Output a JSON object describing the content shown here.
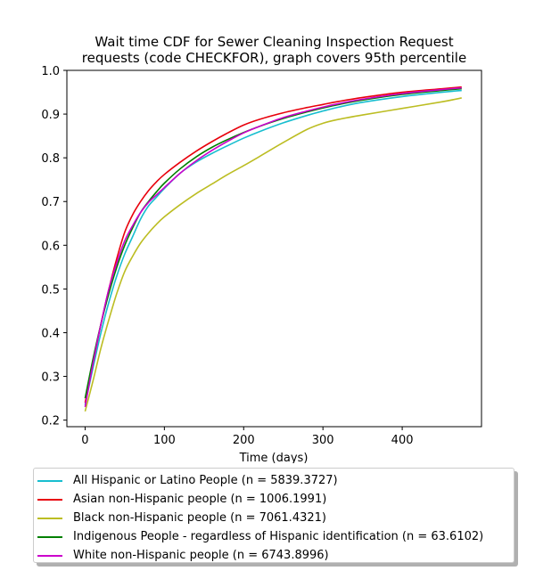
{
  "chart_data": {
    "type": "line",
    "title": "Wait time CDF for Sewer Cleaning Inspection Request\nrequests (code CHECKFOR), graph covers 95th percentile",
    "xlabel": "Time (days)",
    "ylabel": "",
    "xlim": [
      -23,
      500
    ],
    "ylim": [
      0.185,
      1.0
    ],
    "xticks": [
      0,
      100,
      200,
      300,
      400
    ],
    "yticks": [
      0.2,
      0.3,
      0.4,
      0.5,
      0.6,
      0.7,
      0.8,
      0.9,
      1.0
    ],
    "grid": false,
    "legend_position": "bottom-outside",
    "series": [
      {
        "name": "All Hispanic or Latino People (n = 5839.3727)",
        "color": "#17becf",
        "x": [
          0,
          10,
          20,
          30,
          40,
          50,
          60,
          70,
          80,
          90,
          100,
          120,
          140,
          160,
          180,
          200,
          220,
          250,
          280,
          300,
          320,
          350,
          400,
          450,
          475
        ],
        "y": [
          0.235,
          0.32,
          0.4,
          0.47,
          0.53,
          0.58,
          0.62,
          0.66,
          0.69,
          0.71,
          0.73,
          0.765,
          0.79,
          0.81,
          0.828,
          0.845,
          0.86,
          0.88,
          0.897,
          0.907,
          0.916,
          0.927,
          0.94,
          0.95,
          0.954
        ]
      },
      {
        "name": "Asian non-Hispanic people (n = 1006.1991)",
        "color": "#e8000b",
        "x": [
          0,
          10,
          20,
          30,
          40,
          50,
          60,
          70,
          80,
          90,
          100,
          120,
          140,
          160,
          180,
          200,
          220,
          250,
          280,
          300,
          320,
          350,
          400,
          450,
          475
        ],
        "y": [
          0.24,
          0.33,
          0.42,
          0.5,
          0.57,
          0.63,
          0.67,
          0.7,
          0.725,
          0.745,
          0.762,
          0.79,
          0.815,
          0.837,
          0.857,
          0.875,
          0.888,
          0.903,
          0.915,
          0.922,
          0.929,
          0.938,
          0.95,
          0.958,
          0.962
        ]
      },
      {
        "name": "Black non-Hispanic people (n = 7061.4321)",
        "color": "#bcbd22",
        "x": [
          0,
          10,
          20,
          30,
          40,
          50,
          60,
          70,
          80,
          90,
          100,
          120,
          140,
          160,
          180,
          200,
          220,
          250,
          280,
          300,
          320,
          350,
          400,
          450,
          475
        ],
        "y": [
          0.22,
          0.29,
          0.365,
          0.43,
          0.49,
          0.54,
          0.575,
          0.605,
          0.628,
          0.648,
          0.665,
          0.693,
          0.718,
          0.74,
          0.762,
          0.782,
          0.803,
          0.835,
          0.865,
          0.879,
          0.888,
          0.898,
          0.913,
          0.928,
          0.937
        ]
      },
      {
        "name": "Indigenous People - regardless of Hispanic identification (n = 63.6102)",
        "color": "#008000",
        "x": [
          0,
          10,
          20,
          30,
          40,
          50,
          60,
          70,
          80,
          90,
          100,
          120,
          140,
          160,
          180,
          200,
          220,
          250,
          280,
          300,
          320,
          350,
          400,
          450,
          475
        ],
        "y": [
          0.25,
          0.34,
          0.42,
          0.49,
          0.55,
          0.6,
          0.64,
          0.675,
          0.7,
          0.722,
          0.742,
          0.775,
          0.802,
          0.824,
          0.842,
          0.858,
          0.872,
          0.89,
          0.905,
          0.914,
          0.922,
          0.932,
          0.945,
          0.954,
          0.958
        ]
      },
      {
        "name": "White non-Hispanic people (n = 6743.8996)",
        "color": "#cc00cc",
        "x": [
          0,
          10,
          20,
          30,
          40,
          50,
          60,
          70,
          80,
          90,
          100,
          120,
          140,
          160,
          180,
          200,
          220,
          250,
          280,
          300,
          320,
          350,
          400,
          450,
          475
        ],
        "y": [
          0.23,
          0.33,
          0.42,
          0.5,
          0.56,
          0.61,
          0.645,
          0.675,
          0.698,
          0.715,
          0.732,
          0.765,
          0.793,
          0.817,
          0.838,
          0.857,
          0.872,
          0.892,
          0.907,
          0.916,
          0.924,
          0.934,
          0.947,
          0.956,
          0.96
        ]
      }
    ]
  }
}
